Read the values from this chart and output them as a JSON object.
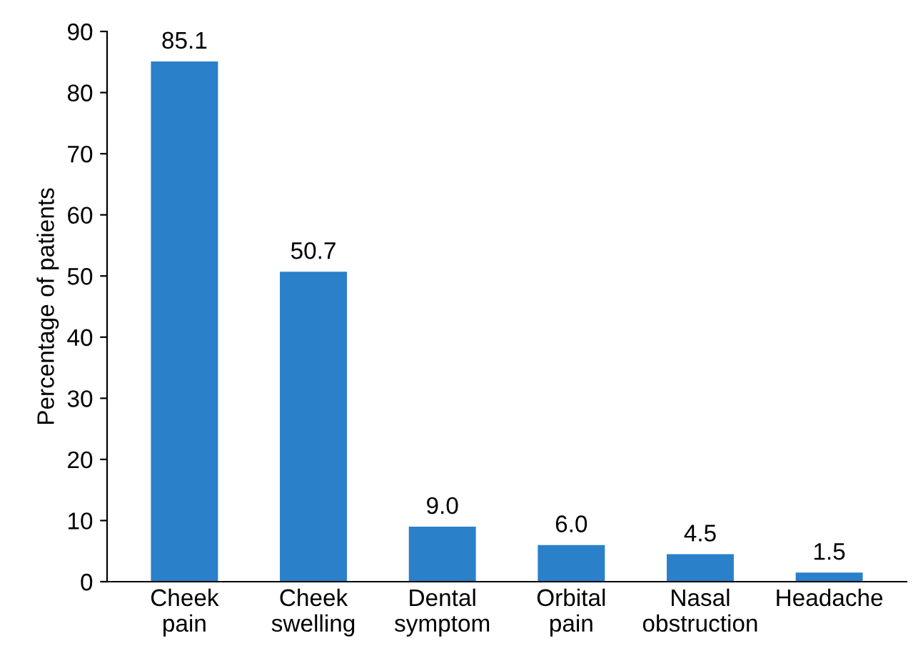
{
  "chart_data": {
    "type": "bar",
    "ylabel": "Percentage of patients",
    "categories": [
      "Cheek\npain",
      "Cheek\nswelling",
      "Dental\nsymptom",
      "Orbital\npain",
      "Nasal\nobstruction",
      "Headache"
    ],
    "values": [
      85.1,
      50.7,
      9.0,
      6.0,
      4.5,
      1.5
    ],
    "value_labels": [
      "85.1",
      "50.7",
      "9.0",
      "6.0",
      "4.5",
      "1.5"
    ],
    "color": "#2a80c9",
    "ylim": [
      0,
      90
    ],
    "yticks": [
      0,
      10,
      20,
      30,
      40,
      50,
      60,
      70,
      80,
      90
    ],
    "grid": false
  }
}
